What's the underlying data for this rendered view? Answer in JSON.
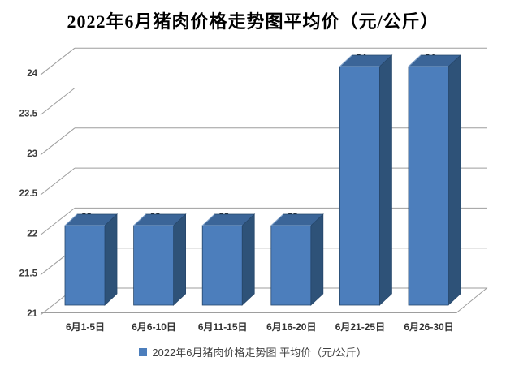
{
  "title": "2022年6月猪肉价格走势图平均价（元/公斤）",
  "legend": {
    "marker": "blue-square",
    "marker_color": "#4C7EBC",
    "label": "2022年6月猪肉价格走势图 平均价（元/公斤）"
  },
  "chart_data": {
    "type": "bar",
    "style": "3d-column",
    "title": "2022年6月猪肉价格走势图平均价（元/公斤）",
    "categories": [
      "6月1-5日",
      "6月6-10日",
      "6月11-15日",
      "6月16-20日",
      "6月21-25日",
      "6月26-30日"
    ],
    "values": [
      22,
      22,
      22,
      22,
      24,
      24
    ],
    "data_labels": [
      "22",
      "22",
      "22",
      "22",
      "24",
      "24"
    ],
    "unit": "元/公斤",
    "xlabel": "",
    "ylabel": "",
    "ylim": [
      21,
      24
    ],
    "yticks": [
      21,
      21.5,
      22,
      22.5,
      23,
      23.5,
      24
    ],
    "ytick_labels": [
      "21",
      "21.5",
      "22",
      "22.5",
      "23",
      "23.5",
      "24"
    ],
    "grid": true,
    "legend_position": "bottom",
    "legend_entries": [
      "2022年6月猪肉价格走势图 平均价（元/公斤）"
    ],
    "colors": {
      "bar_front": "#4C7EBC",
      "bar_top": "#3B6598",
      "bar_side": "#2E5278",
      "bar_outline": "#26476B",
      "bar_highlight": "#8AACD6",
      "gridline": "#9E9E9E",
      "tick_label": "#3C3C3C",
      "data_label": "#1F1F1F",
      "background": "#FFFFFF"
    }
  }
}
